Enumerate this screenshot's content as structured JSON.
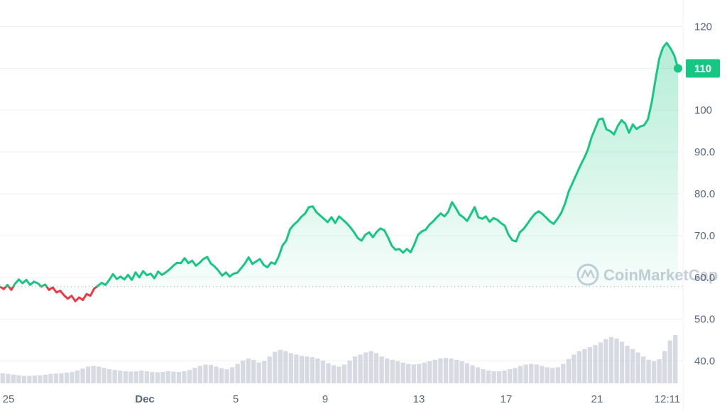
{
  "chart_data": {
    "type": "line",
    "title": "",
    "xlabel": "",
    "ylabel": "",
    "x_ticks": [
      "25",
      "Dec",
      "5",
      "9",
      "13",
      "17",
      "21",
      "12:11"
    ],
    "y_ticks": [
      "40.0",
      "50.0",
      "60.0",
      "70.0",
      "80.0",
      "90.0",
      "100",
      "110",
      "120"
    ],
    "ylim": [
      35,
      125
    ],
    "reference_value": 57.8,
    "current_price": 110,
    "current_price_label": "110",
    "watermark": "CoinMarketCap",
    "colors": {
      "up": "#16c784",
      "down": "#ea3943",
      "grid": "#eff2f5",
      "axis_text": "#58667e",
      "volume": "#c9cdd9"
    },
    "series": [
      {
        "values": [
          57.8,
          57.2,
          58.2,
          57.0,
          58.5,
          59.5,
          58.6,
          59.4,
          58.2,
          59.0,
          58.6,
          57.8,
          58.3,
          57.0,
          57.6,
          56.4,
          56.8,
          55.7,
          54.9,
          55.6,
          54.3,
          55.2,
          54.6,
          56.0,
          55.6,
          57.3,
          58.0,
          58.7,
          58.2,
          59.4,
          60.8,
          59.6,
          60.2,
          59.5,
          60.6,
          59.4,
          61.2,
          60.0,
          61.5,
          60.5,
          60.9,
          59.8,
          61.4,
          60.6,
          61.2,
          61.9,
          62.8,
          63.5,
          63.4,
          64.6,
          63.4,
          64.0,
          62.8,
          63.5,
          64.4,
          64.9,
          63.3,
          62.6,
          61.6,
          60.4,
          61.2,
          60.2,
          60.9,
          61.1,
          62.2,
          63.3,
          64.8,
          63.2,
          63.8,
          64.4,
          63.0,
          62.4,
          63.6,
          63.2,
          65.0,
          67.6,
          68.8,
          71.5,
          72.6,
          73.4,
          74.5,
          75.3,
          76.8,
          77.0,
          75.6,
          74.8,
          74.0,
          73.2,
          74.4,
          73.0,
          74.6,
          73.8,
          73.0,
          72.0,
          70.8,
          69.4,
          68.8,
          70.2,
          70.8,
          69.6,
          70.9,
          71.7,
          71.3,
          69.6,
          67.6,
          66.6,
          66.8,
          65.9,
          66.8,
          66.0,
          67.9,
          70.2,
          71.0,
          71.4,
          72.6,
          73.4,
          74.4,
          75.3,
          74.6,
          75.7,
          78.0,
          76.6,
          75.0,
          74.4,
          73.5,
          75.1,
          76.8,
          74.4,
          74.0,
          74.6,
          73.3,
          74.2,
          73.8,
          73.0,
          72.4,
          70.2,
          68.9,
          68.6,
          70.8,
          71.6,
          72.8,
          74.1,
          75.2,
          75.8,
          75.2,
          74.3,
          73.4,
          72.8,
          74.0,
          75.4,
          77.6,
          80.6,
          82.6,
          84.6,
          86.6,
          88.4,
          90.4,
          93.4,
          95.6,
          97.8,
          98.0,
          95.4,
          95.0,
          94.2,
          96.2,
          97.6,
          96.8,
          94.6,
          96.6,
          95.5,
          96.1,
          96.4,
          97.8,
          101.8,
          107.2,
          112.3,
          115.0,
          116.1,
          114.8,
          113.1,
          110.0
        ]
      }
    ],
    "volume": [
      0.3,
      0.28,
      0.26,
      0.24,
      0.22,
      0.22,
      0.23,
      0.24,
      0.26,
      0.28,
      0.29,
      0.3,
      0.32,
      0.34,
      0.38,
      0.44,
      0.5,
      0.52,
      0.5,
      0.46,
      0.42,
      0.4,
      0.38,
      0.36,
      0.35,
      0.36,
      0.38,
      0.36,
      0.34,
      0.33,
      0.34,
      0.36,
      0.35,
      0.34,
      0.36,
      0.4,
      0.46,
      0.52,
      0.56,
      0.55,
      0.5,
      0.45,
      0.42,
      0.48,
      0.58,
      0.68,
      0.74,
      0.7,
      0.62,
      0.66,
      0.8,
      0.94,
      1.0,
      0.96,
      0.9,
      0.86,
      0.82,
      0.8,
      0.78,
      0.74,
      0.68,
      0.6,
      0.54,
      0.5,
      0.56,
      0.68,
      0.8,
      0.86,
      0.92,
      0.96,
      0.9,
      0.8,
      0.74,
      0.7,
      0.66,
      0.62,
      0.58,
      0.56,
      0.58,
      0.62,
      0.66,
      0.7,
      0.74,
      0.76,
      0.74,
      0.7,
      0.66,
      0.6,
      0.54,
      0.48,
      0.42,
      0.38,
      0.36,
      0.36,
      0.38,
      0.42,
      0.46,
      0.52,
      0.56,
      0.58,
      0.56,
      0.52,
      0.48,
      0.46,
      0.48,
      0.58,
      0.72,
      0.86,
      0.96,
      1.02,
      1.08,
      1.14,
      1.22,
      1.32,
      1.38,
      1.34,
      1.24,
      1.12,
      1.02,
      0.92,
      0.8,
      0.7,
      0.66,
      0.72,
      0.96,
      1.28,
      1.44
    ]
  }
}
